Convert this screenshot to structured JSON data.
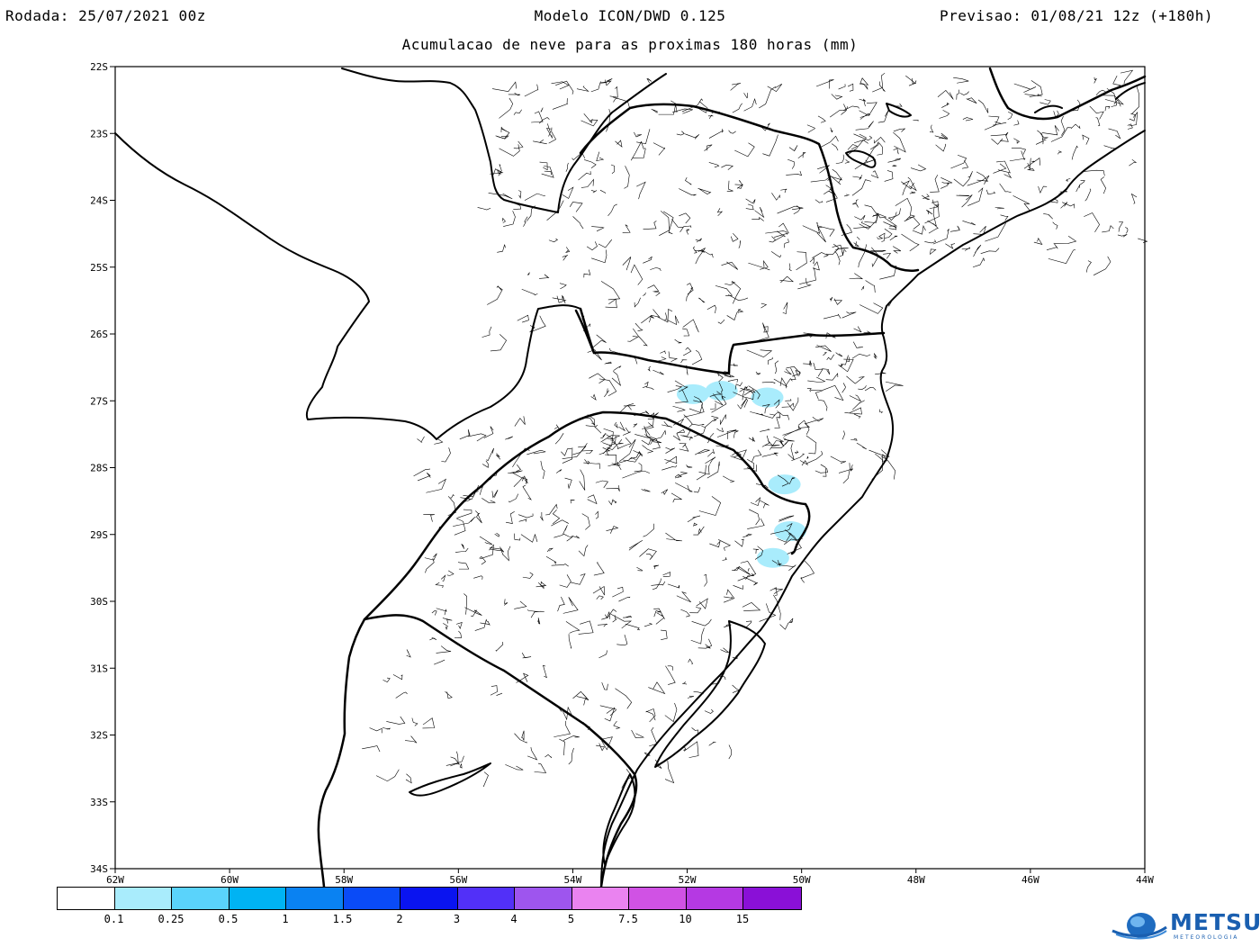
{
  "header": {
    "run": "Rodada: 25/07/2021 00z",
    "model": "Modelo ICON/DWD 0.125",
    "valid": "Previsao: 01/08/21 12z (+180h)",
    "subtitle": "Acumulacao de neve para as proximas 180 horas (mm)"
  },
  "map": {
    "lon_range": [
      -62,
      -44
    ],
    "lat_range": [
      -34,
      -22
    ],
    "lat_ticks": [
      "22S",
      "23S",
      "24S",
      "25S",
      "26S",
      "27S",
      "28S",
      "29S",
      "30S",
      "31S",
      "32S",
      "33S",
      "34S"
    ],
    "lon_ticks": [
      "62W",
      "60W",
      "58W",
      "56W",
      "54W",
      "52W",
      "50W",
      "48W",
      "46W",
      "44W"
    ],
    "snow_areas": [
      {
        "lon": -51.9,
        "lat": -26.9,
        "value": 0.1
      },
      {
        "lon": -51.4,
        "lat": -26.85,
        "value": 0.1
      },
      {
        "lon": -50.6,
        "lat": -26.95,
        "value": 0.1
      },
      {
        "lon": -50.3,
        "lat": -28.25,
        "value": 0.1
      },
      {
        "lon": -50.2,
        "lat": -28.95,
        "value": 0.1
      },
      {
        "lon": -50.5,
        "lat": -29.35,
        "value": 0.1
      }
    ]
  },
  "legend": {
    "colors": [
      "#ffffff",
      "#a9ecfc",
      "#5ad3fb",
      "#00b3f3",
      "#0a82f2",
      "#0a4bf7",
      "#0a14f0",
      "#5230f8",
      "#9e55ee",
      "#ea83f0",
      "#d052e4",
      "#b539e3",
      "#8a10d7"
    ],
    "labels": [
      "0.1",
      "0.25",
      "0.5",
      "1",
      "1.5",
      "2",
      "3",
      "4",
      "5",
      "7.5",
      "10",
      "15"
    ]
  },
  "logo": {
    "name": "METSUL",
    "sub": "METEOROLOGIA"
  }
}
